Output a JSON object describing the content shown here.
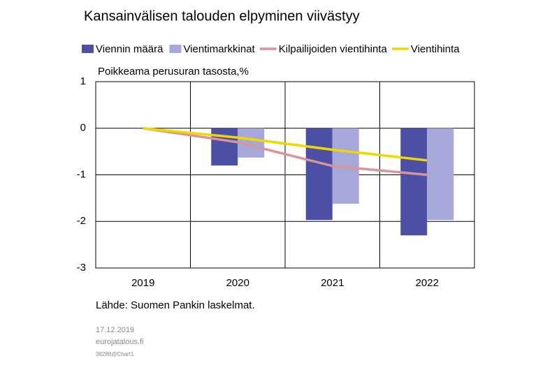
{
  "chart_data": {
    "type": "bar_line",
    "title": "Kansainvälisen talouden elpyminen viivästyy",
    "ylabel": "Poikkeama perusuran tasosta,%",
    "categories": [
      "2019",
      "2020",
      "2021",
      "2022"
    ],
    "series": [
      {
        "name": "Viennin määrä",
        "kind": "bar",
        "color": "#4b50a5",
        "values": [
          0,
          -0.8,
          -1.97,
          -2.3
        ]
      },
      {
        "name": "Vientimarkkinat",
        "kind": "bar",
        "color": "#a5a8d8",
        "values": [
          0,
          -0.63,
          -1.62,
          -1.97
        ]
      },
      {
        "name": "Kilpailijoiden vientihinta",
        "kind": "line",
        "color": "#d9949a",
        "values": [
          0,
          -0.3,
          -0.81,
          -1.0
        ]
      },
      {
        "name": "Vientihinta",
        "kind": "line",
        "color": "#f2d600",
        "values": [
          0,
          -0.2,
          -0.46,
          -0.69
        ]
      }
    ],
    "ylim": [
      -3,
      1
    ],
    "yticks": [
      1,
      0,
      -1,
      -2,
      -3
    ],
    "grid": true,
    "source": "Lähde: Suomen Pankin laskelmat.",
    "date": "17.12.2019",
    "site": "eurojatalous.fi",
    "code": "38288@Chart1"
  }
}
